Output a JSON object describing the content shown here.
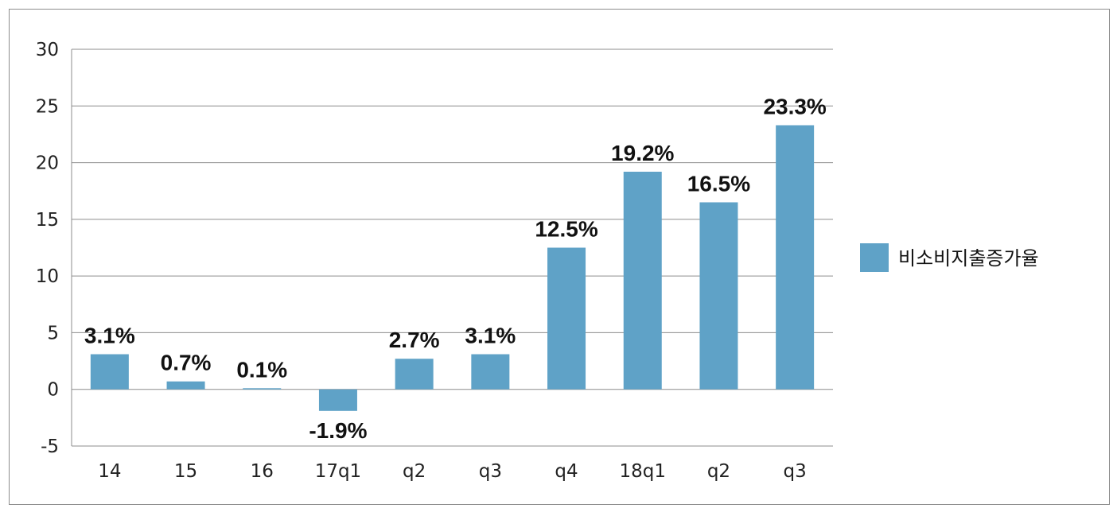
{
  "chart_data": {
    "type": "bar",
    "categories": [
      "14",
      "15",
      "16",
      "17q1",
      "q2",
      "q3",
      "q4",
      "18q1",
      "q2",
      "q3"
    ],
    "series": [
      {
        "name": "비소비지출증가율",
        "values": [
          3.1,
          0.7,
          0.1,
          -1.9,
          2.7,
          3.1,
          12.5,
          19.2,
          16.5,
          23.3
        ],
        "color": "#5fa2c7"
      }
    ],
    "data_labels": [
      "3.1%",
      "0.7%",
      "0.1%",
      "-1.9%",
      "2.7%",
      "3.1%",
      "12.5%",
      "19.2%",
      "16.5%",
      "23.3%"
    ],
    "y_ticks": [
      30,
      25,
      20,
      15,
      10,
      5,
      0,
      -5
    ],
    "ylim": [
      -5,
      30
    ],
    "grid": true,
    "legend_position": "right",
    "title": "",
    "xlabel": "",
    "ylabel": ""
  },
  "colors": {
    "bar": "#5fa2c7",
    "grid": "#8c8c8c",
    "frame": "#8c8c8c"
  }
}
